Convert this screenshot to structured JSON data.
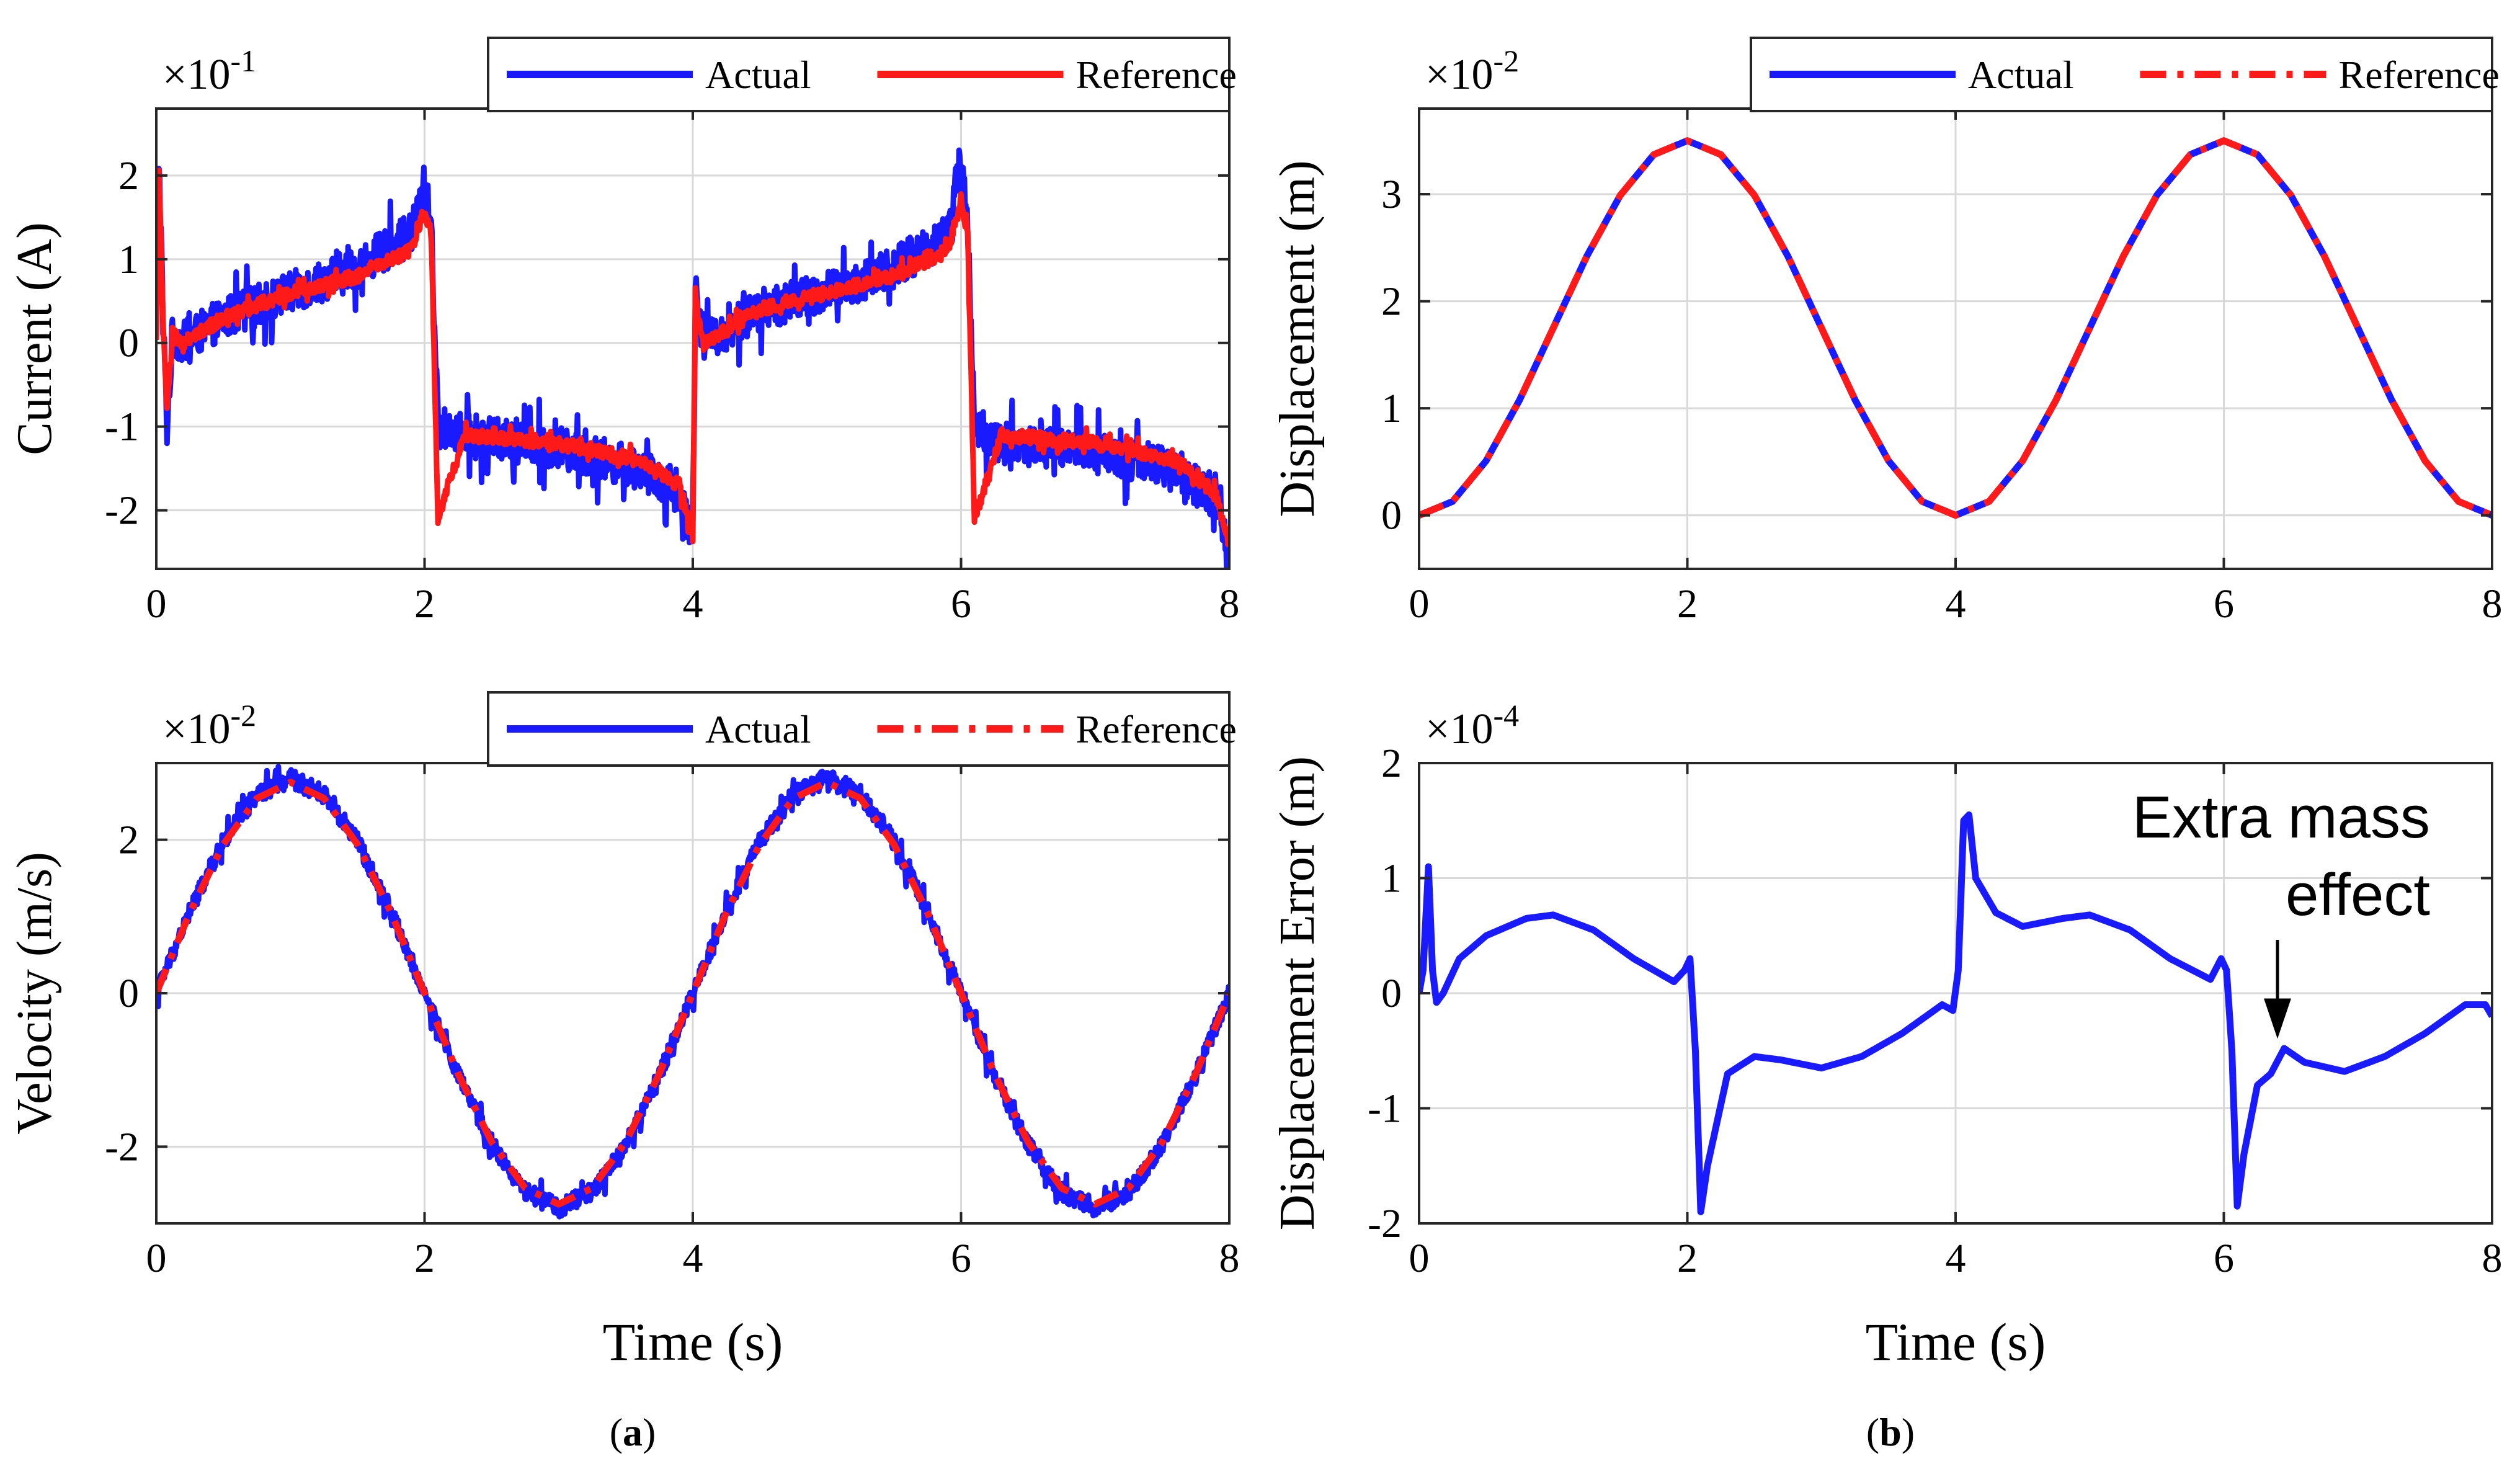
{
  "figure": {
    "panel_labels": [
      "(a)",
      "(b)"
    ],
    "panel_label_letters": [
      "a",
      "b"
    ],
    "colors": {
      "actual": "#1a1aff",
      "reference": "#ff1a1a",
      "grid": "#d9d9d9",
      "axis": "#262626"
    }
  },
  "chart_data": [
    {
      "id": "current",
      "type": "line",
      "title": "",
      "xlabel": "",
      "ylabel": "Current (A)",
      "exponent_base": "×10",
      "exponent_power": "-1",
      "xlim": [
        0,
        8
      ],
      "ylim": [
        -2.7,
        2.8
      ],
      "xticks": [
        0,
        2,
        4,
        6,
        8
      ],
      "yticks": [
        -2,
        -1,
        0,
        1,
        2
      ],
      "grid": true,
      "legend_location": "top-right",
      "series": [
        {
          "name": "Actual",
          "color": "#1a1aff",
          "style": "solid",
          "noise_amplitude": 0.25,
          "x": [
            0,
            0.02,
            0.05,
            0.08,
            0.12,
            0.2,
            0.5,
            1.0,
            1.5,
            1.9,
            2.0,
            2.05,
            2.1,
            2.3,
            3.0,
            3.6,
            3.9,
            4.0,
            4.02,
            4.05,
            4.1,
            4.5,
            5.0,
            5.5,
            5.9,
            6.0,
            6.05,
            6.1,
            6.3,
            7.0,
            7.6,
            7.9,
            8.0
          ],
          "y": [
            0.0,
            2.2,
            0.3,
            -1.0,
            0.1,
            0.0,
            0.3,
            0.6,
            0.9,
            1.3,
            1.9,
            1.4,
            -1.0,
            -1.1,
            -1.25,
            -1.5,
            -1.8,
            -2.3,
            0.8,
            0.2,
            0.0,
            0.4,
            0.6,
            0.9,
            1.3,
            2.2,
            1.4,
            -1.0,
            -1.2,
            -1.3,
            -1.5,
            -1.9,
            -2.6
          ]
        },
        {
          "name": "Reference",
          "color": "#ff1a1a",
          "style": "solid",
          "noise_amplitude": 0.08,
          "x": [
            0,
            0.02,
            0.05,
            0.08,
            0.12,
            0.2,
            0.5,
            1.0,
            1.5,
            1.9,
            2.0,
            2.05,
            2.1,
            2.3,
            3.0,
            3.6,
            3.9,
            4.0,
            4.02,
            4.05,
            4.1,
            4.5,
            5.0,
            5.5,
            5.9,
            6.0,
            6.05,
            6.1,
            6.3,
            7.0,
            7.6,
            7.9,
            8.0
          ],
          "y": [
            0.0,
            2.0,
            0.3,
            -0.8,
            0.1,
            0.0,
            0.3,
            0.6,
            0.8,
            1.1,
            1.6,
            1.3,
            -2.1,
            -1.1,
            -1.2,
            -1.4,
            -1.7,
            -2.3,
            0.6,
            0.2,
            0.0,
            0.4,
            0.6,
            0.8,
            1.1,
            1.7,
            1.3,
            -2.1,
            -1.1,
            -1.2,
            -1.4,
            -1.8,
            -2.4
          ]
        }
      ]
    },
    {
      "id": "velocity",
      "type": "line",
      "title": "",
      "xlabel": "Time (s)",
      "ylabel": "Velocity (m/s)",
      "exponent_base": "×10",
      "exponent_power": "-2",
      "xlim": [
        0,
        8
      ],
      "ylim": [
        -3,
        3
      ],
      "xticks": [
        0,
        2,
        4,
        6,
        8
      ],
      "yticks": [
        -2,
        0,
        2
      ],
      "grid": true,
      "legend_location": "top-right",
      "series": [
        {
          "name": "Actual",
          "color": "#1a1aff",
          "style": "solid",
          "noise_amplitude": 0.12,
          "x": [
            0,
            0.25,
            0.5,
            0.75,
            1.0,
            1.25,
            1.5,
            1.75,
            2.0,
            2.25,
            2.5,
            2.75,
            3.0,
            3.25,
            3.5,
            3.75,
            4.0,
            4.25,
            4.5,
            4.75,
            5.0,
            5.25,
            5.5,
            5.75,
            6.0,
            6.25,
            6.5,
            6.75,
            7.0,
            7.25,
            7.5,
            7.75,
            8.0
          ],
          "y": [
            0.0,
            1.07,
            1.98,
            2.59,
            2.8,
            2.59,
            1.98,
            1.07,
            0.0,
            -1.07,
            -1.98,
            -2.59,
            -2.8,
            -2.59,
            -1.98,
            -1.07,
            0.0,
            1.07,
            1.98,
            2.59,
            2.8,
            2.59,
            1.98,
            1.07,
            0.0,
            -1.07,
            -1.98,
            -2.59,
            -2.8,
            -2.59,
            -1.98,
            -1.07,
            0.0
          ]
        },
        {
          "name": "Reference",
          "color": "#ff1a1a",
          "style": "dashdot",
          "x": [
            0,
            0.25,
            0.5,
            0.75,
            1.0,
            1.25,
            1.5,
            1.75,
            2.0,
            2.25,
            2.5,
            2.75,
            3.0,
            3.25,
            3.5,
            3.75,
            4.0,
            4.25,
            4.5,
            4.75,
            5.0,
            5.25,
            5.5,
            5.75,
            6.0,
            6.25,
            6.5,
            6.75,
            7.0,
            7.25,
            7.5,
            7.75,
            8.0
          ],
          "y": [
            0.0,
            1.05,
            1.94,
            2.54,
            2.75,
            2.54,
            1.94,
            1.05,
            0.0,
            -1.05,
            -1.94,
            -2.54,
            -2.75,
            -2.54,
            -1.94,
            -1.05,
            0.0,
            1.05,
            1.94,
            2.54,
            2.75,
            2.54,
            1.94,
            1.05,
            0.0,
            -1.05,
            -1.94,
            -2.54,
            -2.75,
            -2.54,
            -1.94,
            -1.05,
            0.0
          ]
        }
      ]
    },
    {
      "id": "displacement",
      "type": "line",
      "title": "",
      "xlabel": "",
      "ylabel": "Displacement (m)",
      "exponent_base": "×10",
      "exponent_power": "-2",
      "xlim": [
        0,
        8
      ],
      "ylim": [
        -0.5,
        3.8
      ],
      "xticks": [
        0,
        2,
        4,
        6,
        8
      ],
      "yticks": [
        0,
        1,
        2,
        3
      ],
      "grid": true,
      "legend_location": "top-right",
      "series": [
        {
          "name": "Actual",
          "color": "#1a1aff",
          "style": "solid",
          "x": [
            0,
            0.25,
            0.5,
            0.75,
            1.0,
            1.25,
            1.5,
            1.75,
            2.0,
            2.25,
            2.5,
            2.75,
            3.0,
            3.25,
            3.5,
            3.75,
            4.0,
            4.25,
            4.5,
            4.75,
            5.0,
            5.25,
            5.5,
            5.75,
            6.0,
            6.25,
            6.5,
            6.75,
            7.0,
            7.25,
            7.5,
            7.75,
            8.0
          ],
          "y": [
            0.0,
            0.13,
            0.51,
            1.08,
            1.75,
            2.42,
            2.99,
            3.37,
            3.5,
            3.37,
            2.99,
            2.42,
            1.75,
            1.08,
            0.51,
            0.13,
            0.0,
            0.13,
            0.51,
            1.08,
            1.75,
            2.42,
            2.99,
            3.37,
            3.5,
            3.37,
            2.99,
            2.42,
            1.75,
            1.08,
            0.51,
            0.13,
            0.0
          ]
        },
        {
          "name": "Reference",
          "color": "#ff1a1a",
          "style": "dashdot",
          "x": [
            0,
            0.25,
            0.5,
            0.75,
            1.0,
            1.25,
            1.5,
            1.75,
            2.0,
            2.25,
            2.5,
            2.75,
            3.0,
            3.25,
            3.5,
            3.75,
            4.0,
            4.25,
            4.5,
            4.75,
            5.0,
            5.25,
            5.5,
            5.75,
            6.0,
            6.25,
            6.5,
            6.75,
            7.0,
            7.25,
            7.5,
            7.75,
            8.0
          ],
          "y": [
            0.0,
            0.13,
            0.51,
            1.08,
            1.75,
            2.42,
            2.99,
            3.37,
            3.5,
            3.37,
            2.99,
            2.42,
            1.75,
            1.08,
            0.51,
            0.13,
            0.0,
            0.13,
            0.51,
            1.08,
            1.75,
            2.42,
            2.99,
            3.37,
            3.5,
            3.37,
            2.99,
            2.42,
            1.75,
            1.08,
            0.51,
            0.13,
            0.0
          ]
        }
      ]
    },
    {
      "id": "displacement_error",
      "type": "line",
      "title": "",
      "xlabel": "Time (s)",
      "ylabel": "Displacement Error (m)",
      "exponent_base": "×10",
      "exponent_power": "-4",
      "xlim": [
        0,
        8
      ],
      "ylim": [
        -2,
        2
      ],
      "xticks": [
        0,
        2,
        4,
        6,
        8
      ],
      "yticks": [
        -2,
        -1,
        0,
        1,
        2
      ],
      "grid": true,
      "legend_location": "none",
      "annotation": {
        "lines": [
          "Extra mass",
          "effect"
        ],
        "points_to": [
          6.4,
          -0.45
        ]
      },
      "series": [
        {
          "name": "",
          "color": "#1a1aff",
          "style": "solid",
          "x": [
            0,
            0.03,
            0.07,
            0.1,
            0.13,
            0.18,
            0.3,
            0.5,
            0.8,
            1.0,
            1.3,
            1.6,
            1.9,
            1.98,
            2.02,
            2.06,
            2.1,
            2.15,
            2.3,
            2.5,
            2.7,
            3.0,
            3.3,
            3.6,
            3.9,
            3.98,
            4.02,
            4.06,
            4.1,
            4.15,
            4.3,
            4.5,
            4.8,
            5.0,
            5.3,
            5.6,
            5.9,
            5.98,
            6.02,
            6.06,
            6.1,
            6.15,
            6.25,
            6.35,
            6.45,
            6.6,
            6.9,
            7.2,
            7.5,
            7.8,
            7.95,
            8.0
          ],
          "y": [
            0.0,
            0.2,
            1.1,
            0.2,
            -0.08,
            0.0,
            0.3,
            0.5,
            0.65,
            0.68,
            0.55,
            0.3,
            0.1,
            0.2,
            0.3,
            -0.5,
            -1.9,
            -1.5,
            -0.7,
            -0.55,
            -0.58,
            -0.65,
            -0.55,
            -0.35,
            -0.1,
            -0.15,
            0.2,
            1.5,
            1.55,
            1.0,
            0.7,
            0.58,
            0.65,
            0.68,
            0.55,
            0.3,
            0.12,
            0.3,
            0.2,
            -0.5,
            -1.85,
            -1.4,
            -0.8,
            -0.7,
            -0.48,
            -0.6,
            -0.68,
            -0.55,
            -0.35,
            -0.1,
            -0.1,
            -0.2
          ]
        }
      ]
    }
  ]
}
